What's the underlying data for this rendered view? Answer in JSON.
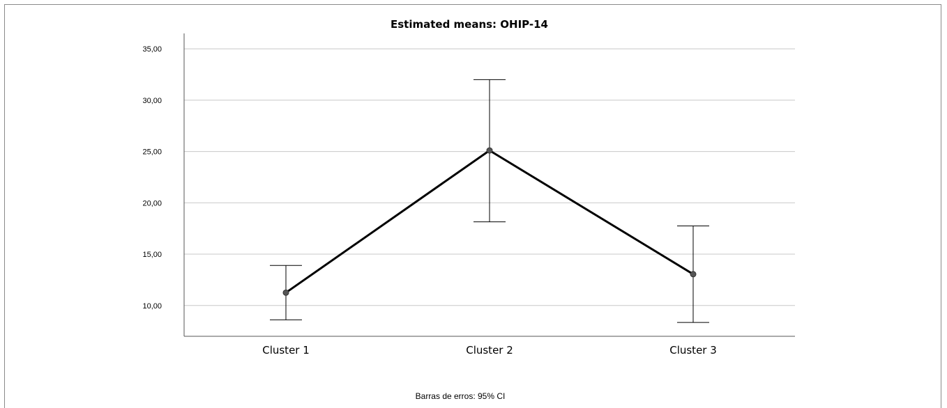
{
  "chart_data": {
    "type": "line",
    "title": "Estimated means: OHIP-14",
    "categories": [
      "Cluster 1",
      "Cluster 2",
      "Cluster 3"
    ],
    "series": [
      {
        "values": [
          11.25,
          25.1,
          13.05
        ],
        "ci_low": [
          8.6,
          18.15,
          8.35
        ],
        "ci_high": [
          13.9,
          32.0,
          17.75
        ]
      }
    ],
    "ylim": [
      7.0,
      36.5
    ],
    "yticks": [
      10,
      15,
      20,
      25,
      30,
      35
    ],
    "ytick_labels": [
      "10,00",
      "15,00",
      "20,00",
      "25,00",
      "30,00",
      "35,00"
    ],
    "grid": true,
    "note": "Barras de erros: 95% CI",
    "colors": {
      "line": "#000000",
      "grid": "#c8c8c8",
      "axis": "#555555",
      "marker": "#555555"
    }
  }
}
